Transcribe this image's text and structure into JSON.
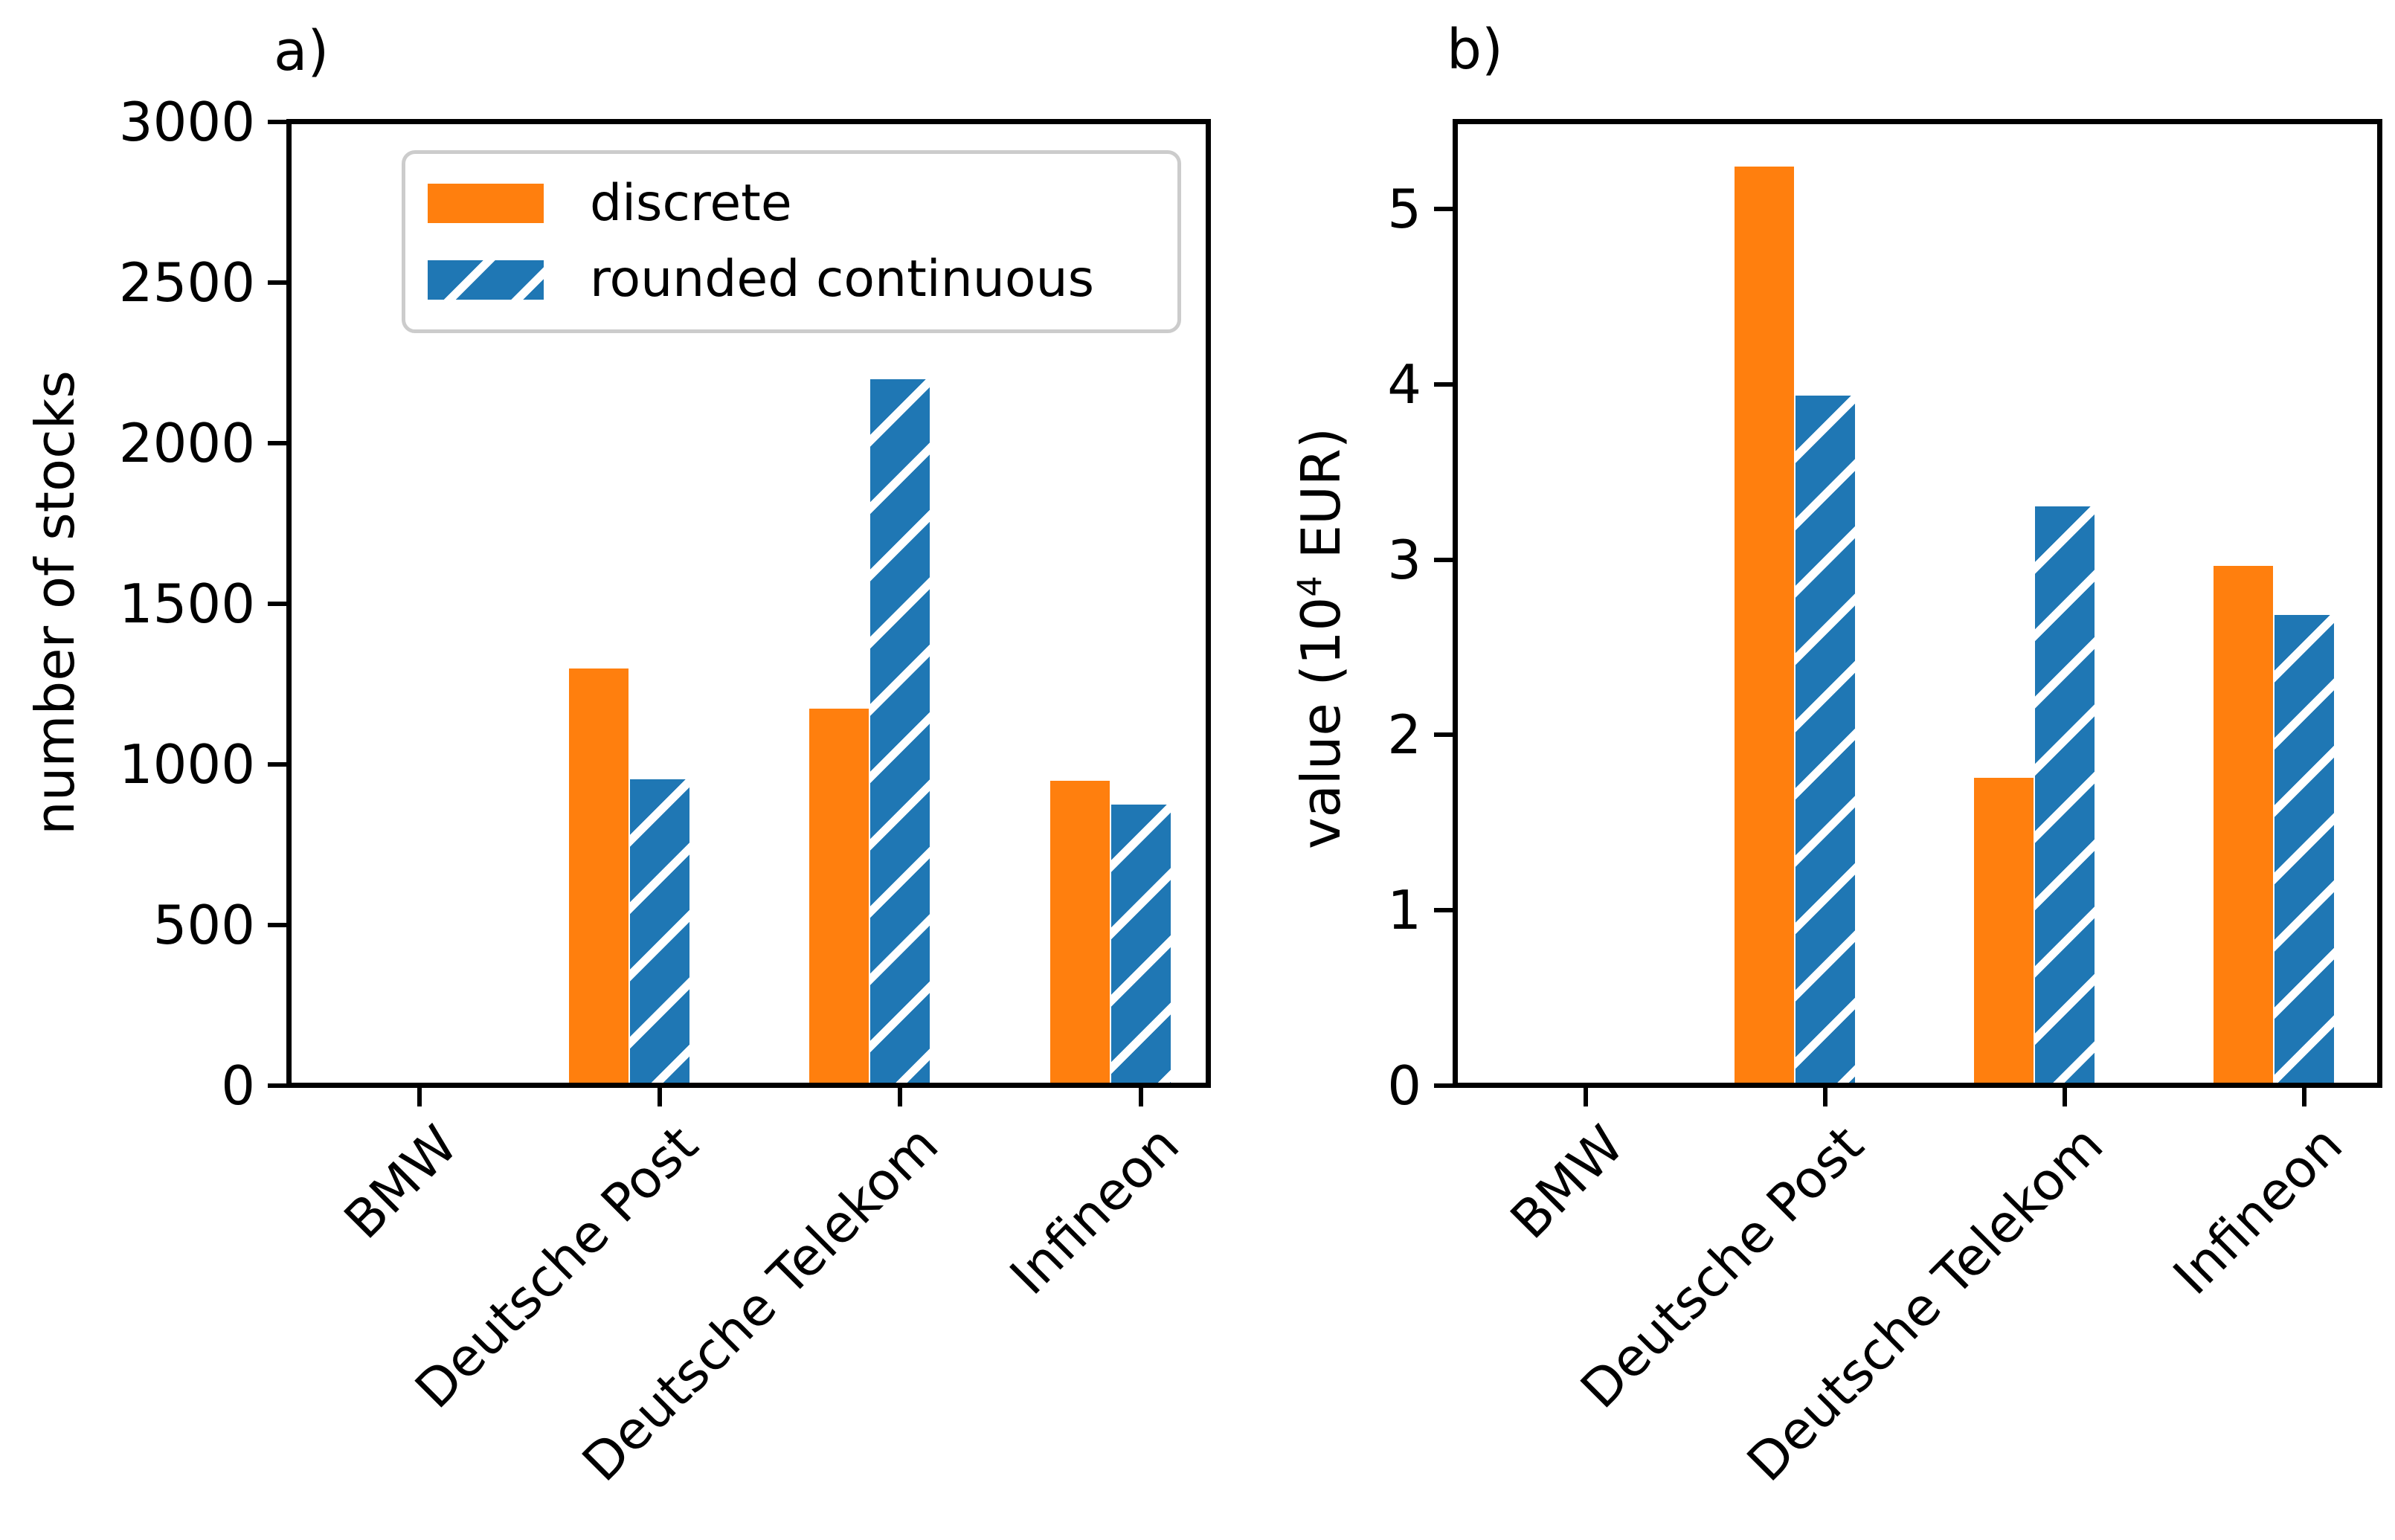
{
  "figure": {
    "panels": [
      {
        "label": "a)",
        "ylabel_prefix": "number of stocks",
        "ylabel_sup": "",
        "ylabel_suffix": ""
      },
      {
        "label": "b)",
        "ylabel_prefix": "value (10",
        "ylabel_sup": "4",
        "ylabel_suffix": " EUR)"
      }
    ],
    "legend": {
      "items": [
        {
          "label": "discrete",
          "swatch": "solid-orange-swatch"
        },
        {
          "label": "rounded continuous",
          "swatch": "blue-hatched-swatch"
        }
      ]
    },
    "colors": {
      "discrete": "#ff7f0e",
      "rounded_continuous": "#1f77b4",
      "hatch": "#ffffff",
      "spine": "#000000",
      "legend_edge": "#cccccc"
    }
  },
  "chart_data": [
    {
      "type": "bar",
      "panel": "a)",
      "categories": [
        "BMW",
        "Deutsche Post",
        "Deutsche Telekom",
        "Infineon"
      ],
      "series": [
        {
          "name": "discrete",
          "values": [
            0,
            1290,
            1165,
            940
          ]
        },
        {
          "name": "rounded continuous",
          "values": [
            0,
            945,
            2190,
            865
          ]
        }
      ],
      "xlabel": "",
      "ylabel": "number of stocks",
      "ylim": [
        0,
        3000
      ],
      "yticks": [
        0,
        500,
        1000,
        1500,
        2000,
        2500,
        3000
      ],
      "grid": false,
      "legend_position": "upper left",
      "hatch": [
        null,
        "/"
      ]
    },
    {
      "type": "bar",
      "panel": "b)",
      "categories": [
        "BMW",
        "Deutsche Post",
        "Deutsche Telekom",
        "Infineon"
      ],
      "series": [
        {
          "name": "discrete",
          "values": [
            0,
            5.23,
            1.74,
            2.95
          ]
        },
        {
          "name": "rounded continuous",
          "values": [
            0,
            3.92,
            3.29,
            2.67
          ]
        }
      ],
      "xlabel": "",
      "ylabel": "value (10^4 EUR)",
      "ylim": [
        0,
        5.5
      ],
      "yticks": [
        0,
        1,
        2,
        3,
        4,
        5
      ],
      "grid": false,
      "legend_position": "none",
      "hatch": [
        null,
        "/"
      ]
    }
  ]
}
